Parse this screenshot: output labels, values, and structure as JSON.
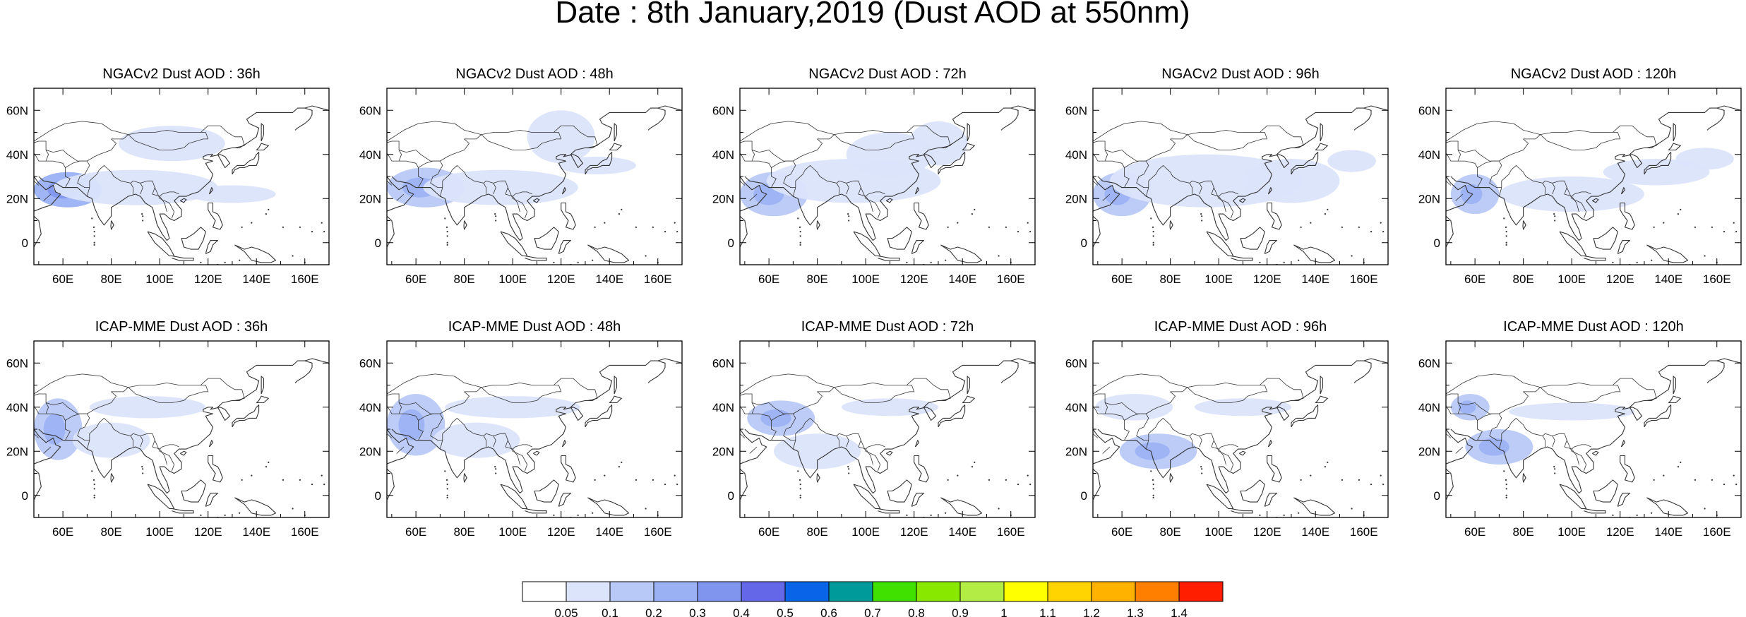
{
  "figure": {
    "title": "Date : 8th January,2019 (Dust AOD at 550nm)"
  },
  "map": {
    "lat_ticks": [
      "60N",
      "40N",
      "20N",
      "0"
    ],
    "lat_values": [
      60,
      40,
      20,
      0
    ],
    "lon_ticks": [
      "60E",
      "80E",
      "100E",
      "120E",
      "140E",
      "160E"
    ],
    "lon_values": [
      60,
      80,
      100,
      120,
      140,
      160
    ],
    "extent": {
      "lon": [
        48,
        170
      ],
      "lat": [
        -10,
        70
      ]
    },
    "fill_color": "#b3c8f7",
    "coast_color": "#333333"
  },
  "rows": [
    {
      "model": "NGACv2",
      "panels": [
        {
          "title": "NGACv2 Dust AOD : 36h",
          "dust": [
            {
              "c": [
                62,
                24
              ],
              "r": [
                14,
                8
              ],
              "l": 0.3
            },
            {
              "c": [
                90,
                25
              ],
              "r": [
                34,
                8
              ],
              "l": 0.15
            },
            {
              "c": [
                105,
                45
              ],
              "r": [
                22,
                8
              ],
              "l": 0.1
            },
            {
              "c": [
                130,
                22
              ],
              "r": [
                18,
                4
              ],
              "l": 0.1
            }
          ]
        },
        {
          "title": "NGACv2 Dust AOD : 48h",
          "dust": [
            {
              "c": [
                64,
                25
              ],
              "r": [
                16,
                9
              ],
              "l": 0.25
            },
            {
              "c": [
                95,
                25
              ],
              "r": [
                32,
                8
              ],
              "l": 0.15
            },
            {
              "c": [
                120,
                48
              ],
              "r": [
                14,
                12
              ],
              "l": 0.1
            },
            {
              "c": [
                135,
                35
              ],
              "r": [
                16,
                4
              ],
              "l": 0.1
            }
          ]
        },
        {
          "title": "NGACv2 Dust AOD : 72h",
          "dust": [
            {
              "c": [
                62,
                22
              ],
              "r": [
                14,
                10
              ],
              "l": 0.25
            },
            {
              "c": [
                95,
                28
              ],
              "r": [
                36,
                10
              ],
              "l": 0.15
            },
            {
              "c": [
                110,
                40
              ],
              "r": [
                18,
                10
              ],
              "l": 0.1
            },
            {
              "c": [
                130,
                45
              ],
              "r": [
                12,
                10
              ],
              "l": 0.1
            }
          ]
        },
        {
          "title": "NGACv2 Dust AOD : 96h",
          "dust": [
            {
              "c": [
                60,
                22
              ],
              "r": [
                12,
                10
              ],
              "l": 0.2
            },
            {
              "c": [
                95,
                28
              ],
              "r": [
                40,
                12
              ],
              "l": 0.15
            },
            {
              "c": [
                130,
                28
              ],
              "r": [
                20,
                10
              ],
              "l": 0.1
            },
            {
              "c": [
                155,
                37
              ],
              "r": [
                10,
                5
              ],
              "l": 0.1
            }
          ]
        },
        {
          "title": "NGACv2 Dust AOD : 120h",
          "dust": [
            {
              "c": [
                60,
                22
              ],
              "r": [
                10,
                9
              ],
              "l": 0.2
            },
            {
              "c": [
                100,
                22
              ],
              "r": [
                30,
                8
              ],
              "l": 0.1
            },
            {
              "c": [
                135,
                32
              ],
              "r": [
                22,
                6
              ],
              "l": 0.1
            },
            {
              "c": [
                155,
                38
              ],
              "r": [
                12,
                5
              ],
              "l": 0.1
            }
          ]
        }
      ]
    },
    {
      "model": "ICAP-MME",
      "panels": [
        {
          "title": "ICAP-MME Dust AOD : 36h",
          "dust": [
            {
              "c": [
                58,
                30
              ],
              "r": [
                10,
                14
              ],
              "l": 0.25
            },
            {
              "c": [
                80,
                25
              ],
              "r": [
                16,
                8
              ],
              "l": 0.15
            },
            {
              "c": [
                95,
                40
              ],
              "r": [
                24,
                5
              ],
              "l": 0.1
            }
          ]
        },
        {
          "title": "ICAP-MME Dust AOD : 48h",
          "dust": [
            {
              "c": [
                60,
                32
              ],
              "r": [
                12,
                14
              ],
              "l": 0.25
            },
            {
              "c": [
                85,
                25
              ],
              "r": [
                18,
                8
              ],
              "l": 0.15
            },
            {
              "c": [
                100,
                40
              ],
              "r": [
                28,
                5
              ],
              "l": 0.1
            }
          ]
        },
        {
          "title": "ICAP-MME Dust AOD : 72h",
          "dust": [
            {
              "c": [
                65,
                35
              ],
              "r": [
                14,
                8
              ],
              "l": 0.2
            },
            {
              "c": [
                80,
                20
              ],
              "r": [
                18,
                8
              ],
              "l": 0.15
            },
            {
              "c": [
                110,
                40
              ],
              "r": [
                20,
                4
              ],
              "l": 0.1
            }
          ]
        },
        {
          "title": "ICAP-MME Dust AOD : 96h",
          "dust": [
            {
              "c": [
                65,
                40
              ],
              "r": [
                16,
                6
              ],
              "l": 0.15
            },
            {
              "c": [
                75,
                20
              ],
              "r": [
                16,
                8
              ],
              "l": 0.25
            },
            {
              "c": [
                110,
                40
              ],
              "r": [
                20,
                4
              ],
              "l": 0.1
            }
          ]
        },
        {
          "title": "ICAP-MME Dust AOD : 120h",
          "dust": [
            {
              "c": [
                58,
                40
              ],
              "r": [
                8,
                6
              ],
              "l": 0.2
            },
            {
              "c": [
                70,
                22
              ],
              "r": [
                14,
                8
              ],
              "l": 0.2
            },
            {
              "c": [
                100,
                38
              ],
              "r": [
                26,
                4
              ],
              "l": 0.1
            }
          ]
        }
      ]
    }
  ],
  "colorbar": {
    "colors": [
      "#ffffff",
      "#dbe4fb",
      "#b8c9f7",
      "#9ab1f4",
      "#7f95ee",
      "#6367e8",
      "#0a64e8",
      "#009a9a",
      "#40e000",
      "#88e800",
      "#b4ec46",
      "#ffff00",
      "#ffd400",
      "#ffb200",
      "#ff8000",
      "#ff1e00"
    ],
    "labels": [
      "0.05",
      "0.1",
      "0.2",
      "0.3",
      "0.4",
      "0.5",
      "0.6",
      "0.7",
      "0.8",
      "0.9",
      "1",
      "1.1",
      "1.2",
      "1.3",
      "1.4"
    ]
  }
}
